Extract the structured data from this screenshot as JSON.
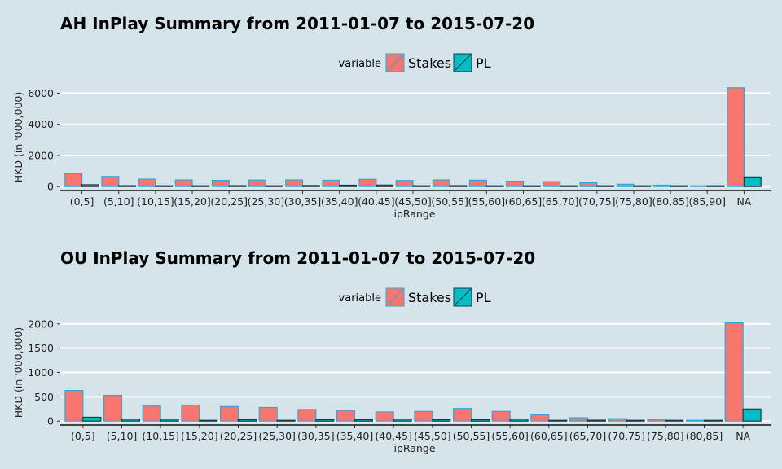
{
  "colors": {
    "background": "#d5e4eb",
    "stakes_fill": "#f8766d",
    "stakes_stroke": "#2fa8d8",
    "pl_fill": "#00bfc4",
    "pl_stroke": "#1a3a4a",
    "grid": "#ffffff"
  },
  "chart_data": [
    {
      "type": "bar",
      "title": "AH InPlay Summary from 2011-01-07 to 2015-07-20",
      "xlabel": "ipRange",
      "ylabel": "HKD (in '000,000)",
      "ylim": [
        -250,
        6600
      ],
      "yticks": [
        0,
        2000,
        4000,
        6000
      ],
      "legend": {
        "title": "variable",
        "position": "top",
        "entries": [
          "Stakes",
          "PL"
        ]
      },
      "grid": true,
      "categories": [
        "(0,5]",
        "(5,10]",
        "(10,15]",
        "(15,20]",
        "(20,25]",
        "(25,30]",
        "(30,35]",
        "(35,40]",
        "(40,45]",
        "(45,50]",
        "(50,55]",
        "(55,60]",
        "(60,65]",
        "(65,70]",
        "(70,75]",
        "(75,80]",
        "(80,85]",
        "(85,90]",
        "NA"
      ],
      "series": [
        {
          "name": "Stakes",
          "values": [
            840,
            650,
            480,
            430,
            400,
            420,
            430,
            410,
            470,
            390,
            430,
            410,
            350,
            320,
            250,
            150,
            90,
            30,
            6350
          ]
        },
        {
          "name": "PL",
          "values": [
            120,
            60,
            50,
            40,
            60,
            30,
            70,
            90,
            100,
            50,
            60,
            30,
            50,
            30,
            40,
            20,
            10,
            5,
            620
          ]
        }
      ]
    },
    {
      "type": "bar",
      "title": "OU InPlay Summary from 2011-01-07 to 2015-07-20",
      "xlabel": "ipRange",
      "ylabel": "HKD (in '000,000)",
      "ylim": [
        -80,
        2080
      ],
      "yticks": [
        0,
        500,
        1000,
        1500,
        2000
      ],
      "legend": {
        "title": "variable",
        "position": "top",
        "entries": [
          "Stakes",
          "PL"
        ]
      },
      "grid": true,
      "categories": [
        "(0,5]",
        "(5,10]",
        "(10,15]",
        "(15,20]",
        "(20,25]",
        "(25,30]",
        "(30,35]",
        "(35,40]",
        "(40,45]",
        "(45,50]",
        "(50,55]",
        "(55,60]",
        "(60,65]",
        "(65,70]",
        "(70,75]",
        "(75,80]",
        "(80,85]",
        "NA"
      ],
      "series": [
        {
          "name": "Stakes",
          "values": [
            630,
            530,
            310,
            330,
            300,
            280,
            240,
            220,
            190,
            200,
            260,
            200,
            130,
            70,
            50,
            30,
            10,
            2020
          ]
        },
        {
          "name": "PL",
          "values": [
            80,
            40,
            40,
            10,
            30,
            10,
            30,
            30,
            40,
            30,
            30,
            40,
            10,
            20,
            10,
            5,
            2,
            250
          ]
        }
      ]
    }
  ]
}
